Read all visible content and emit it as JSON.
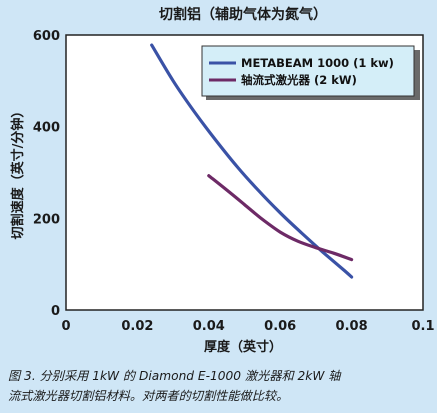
{
  "chart_data": {
    "type": "line",
    "title": "切割铝（辅助气体为氮气）",
    "xlabel": "厚度（英寸）",
    "ylabel": "切割速度（英寸/分钟）",
    "xlim": [
      0,
      0.1
    ],
    "ylim": [
      0,
      600
    ],
    "xticks": [
      "0",
      "0.02",
      "0.04",
      "0.06",
      "0.08",
      "0.1"
    ],
    "yticks": [
      "0",
      "200",
      "400",
      "600"
    ],
    "grid": false,
    "legend_position": "top-right",
    "series": [
      {
        "name": "METABEAM 1000 (1 kw)",
        "color": "#3a52a6",
        "x": [
          0.024,
          0.03,
          0.036,
          0.042,
          0.048,
          0.054,
          0.06,
          0.066,
          0.072,
          0.078,
          0.08
        ],
        "y": [
          578,
          500,
          432,
          370,
          312,
          260,
          212,
          168,
          126,
          86,
          72
        ]
      },
      {
        "name": "轴流式激光器 (2 kW)",
        "color": "#6d2a66",
        "x": [
          0.04,
          0.045,
          0.05,
          0.055,
          0.06,
          0.065,
          0.07,
          0.075,
          0.08
        ],
        "y": [
          293,
          262,
          230,
          198,
          170,
          150,
          136,
          124,
          110
        ]
      }
    ]
  },
  "caption": {
    "line1_a": "图 3. 分别采用 1kW 的 ",
    "line1_b": "Diamond E-1000",
    "line1_c": " 激光器和 2kW 轴",
    "line2": "流式激光器切割铝材料。对两者的切割性能做比较。"
  }
}
